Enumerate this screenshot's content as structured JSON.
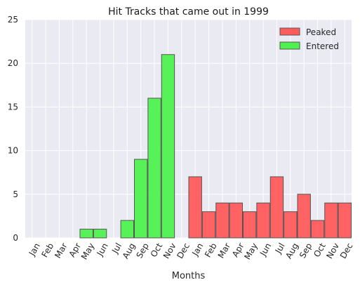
{
  "chart_data": {
    "type": "bar",
    "title": "Hit Tracks that came out in 1999",
    "xlabel": "Months",
    "ylabel": "",
    "ylim": [
      0,
      25
    ],
    "yticks": [
      0,
      5,
      10,
      15,
      20,
      25
    ],
    "grid": true,
    "legend_position": "top-right",
    "categories": [
      "Jan",
      "Feb",
      "Mar",
      "Apr",
      "May",
      "Jun",
      "Jul",
      "Aug",
      "Sep",
      "Oct",
      "Nov",
      "Dec",
      "Jan",
      "Feb",
      "Mar",
      "Apr",
      "May",
      "Jun",
      "Jul",
      "Aug",
      "Sep",
      "Oct",
      "Nov",
      "Dec"
    ],
    "series": [
      {
        "name": "Peaked",
        "color": "#ff5b5b",
        "values": [
          0,
          0,
          0,
          0,
          0,
          0,
          0,
          0,
          0,
          0,
          0,
          0,
          7,
          3,
          4,
          4,
          3,
          4,
          7,
          3,
          5,
          2,
          4,
          4
        ]
      },
      {
        "name": "Entered",
        "color": "#4ef24e",
        "values": [
          0,
          0,
          0,
          0,
          1,
          1,
          0,
          2,
          9,
          16,
          21,
          0,
          0,
          0,
          0,
          0,
          0,
          0,
          0,
          0,
          0,
          0,
          0,
          0
        ]
      }
    ]
  }
}
